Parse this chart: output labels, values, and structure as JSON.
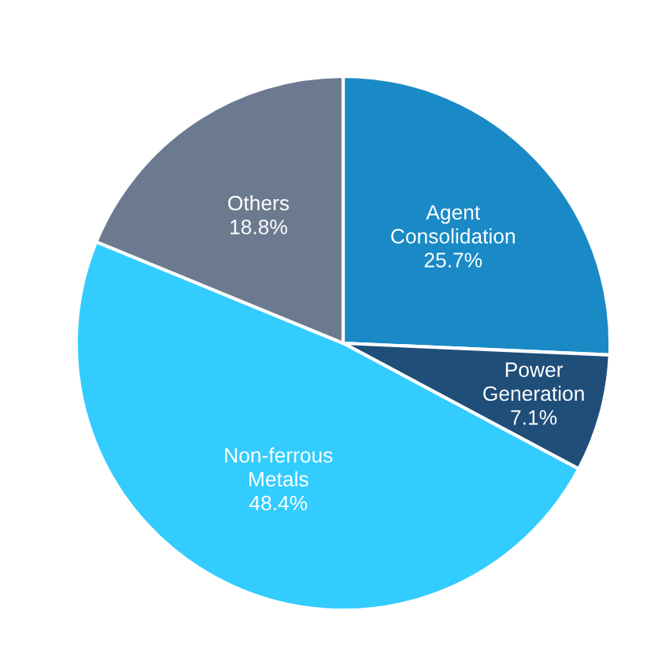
{
  "chart_data": {
    "type": "pie",
    "categories": [
      "Agent Consolidation",
      "Power Generation",
      "Non-ferrous Metals",
      "Others"
    ],
    "values": [
      25.7,
      7.1,
      48.4,
      18.8
    ],
    "value_labels": [
      "25.7%",
      "7.1%",
      "48.4%",
      "18.8%"
    ],
    "colors": [
      "#1a8ac6",
      "#1f4e79",
      "#33ccff",
      "#6b7a8f"
    ]
  }
}
